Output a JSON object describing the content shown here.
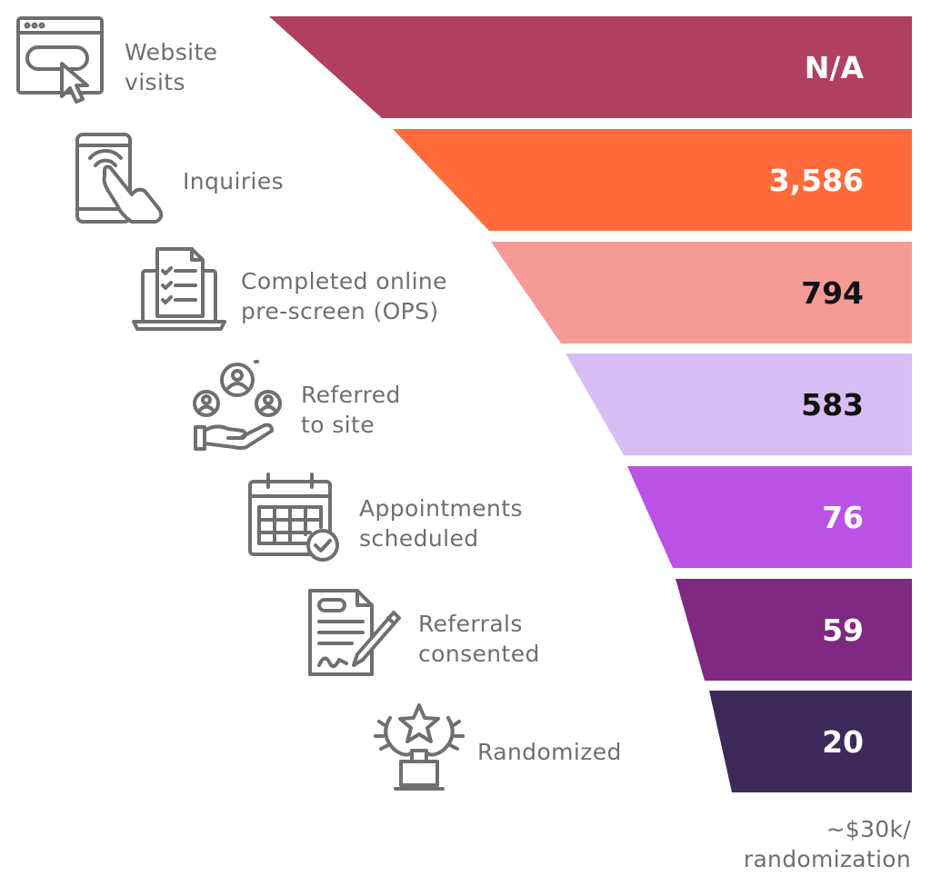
{
  "chart_data": {
    "type": "bar",
    "orientation": "horizontal",
    "categories": [
      "Website\nvisits",
      "Inquiries",
      "Completed online\npre-screen (OPS)",
      "Referred\nto site",
      "Appointments\nscheduled",
      "Referrals\nconsented",
      "Randomized"
    ],
    "value_labels": [
      "N/A",
      "3,586",
      "794",
      "583",
      "76",
      "59",
      "20"
    ],
    "values": [
      null,
      3586,
      794,
      583,
      76,
      59,
      20
    ],
    "colors": [
      "#b13f5f",
      "#ff6b3a",
      "#f59a97",
      "#d8bdf5",
      "#bb51e5",
      "#7e2882",
      "#3d2a5a"
    ],
    "value_label_colors": [
      "#ffffff",
      "#ffffff",
      "#111111",
      "#111111",
      "#ffffff",
      "#ffffff",
      "#ffffff"
    ],
    "icons": [
      "browser-click-icon",
      "tablet-touch-icon",
      "laptop-checklist-icon",
      "hand-people-icon",
      "calendar-check-icon",
      "document-pen-icon",
      "trophy-star-icon"
    ],
    "footnote": [
      "~$30k/",
      "randomization"
    ]
  }
}
